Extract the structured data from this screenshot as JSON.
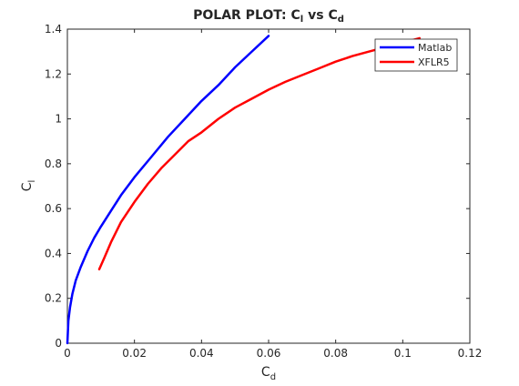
{
  "chart_data": {
    "type": "line",
    "title": {
      "main": "POLAR PLOT: C",
      "sub1": "l",
      "mid": " vs C",
      "sub2": "d"
    },
    "xlabel": {
      "main": "C",
      "sub": "d"
    },
    "ylabel": {
      "main": "C",
      "sub": "l"
    },
    "xlim": [
      0,
      0.12
    ],
    "ylim": [
      0,
      1.4
    ],
    "xticks": [
      0,
      0.02,
      0.04,
      0.06,
      0.08,
      0.1,
      0.12
    ],
    "xtick_labels": [
      "0",
      "0.02",
      "0.04",
      "0.06",
      "0.08",
      "0.1",
      "0.12"
    ],
    "yticks": [
      0,
      0.2,
      0.4,
      0.6,
      0.8,
      1,
      1.2,
      1.4
    ],
    "ytick_labels": [
      "0",
      "0.2",
      "0.4",
      "0.6",
      "0.8",
      "1",
      "1.2",
      "1.4"
    ],
    "grid": false,
    "legend_position": "top-right",
    "series": [
      {
        "name": "Matlab",
        "color": "#0000ff",
        "x": [
          0.0,
          0.0003,
          0.0008,
          0.0015,
          0.0025,
          0.004,
          0.006,
          0.008,
          0.01,
          0.013,
          0.016,
          0.02,
          0.025,
          0.03,
          0.035,
          0.04,
          0.045,
          0.05,
          0.055,
          0.06
        ],
        "y": [
          0.0,
          0.1,
          0.16,
          0.22,
          0.28,
          0.34,
          0.41,
          0.47,
          0.52,
          0.59,
          0.66,
          0.74,
          0.83,
          0.92,
          1.0,
          1.08,
          1.15,
          1.23,
          1.3,
          1.37
        ]
      },
      {
        "name": "XFLR5",
        "color": "#ff0000",
        "x": [
          0.0095,
          0.011,
          0.013,
          0.016,
          0.02,
          0.024,
          0.028,
          0.032,
          0.036,
          0.04,
          0.045,
          0.05,
          0.055,
          0.06,
          0.065,
          0.07,
          0.075,
          0.08,
          0.085,
          0.09,
          0.095,
          0.1,
          0.105
        ],
        "y": [
          0.33,
          0.38,
          0.45,
          0.54,
          0.63,
          0.71,
          0.78,
          0.84,
          0.9,
          0.94,
          1.0,
          1.05,
          1.09,
          1.13,
          1.165,
          1.195,
          1.225,
          1.255,
          1.28,
          1.3,
          1.32,
          1.34,
          1.36
        ]
      }
    ]
  }
}
